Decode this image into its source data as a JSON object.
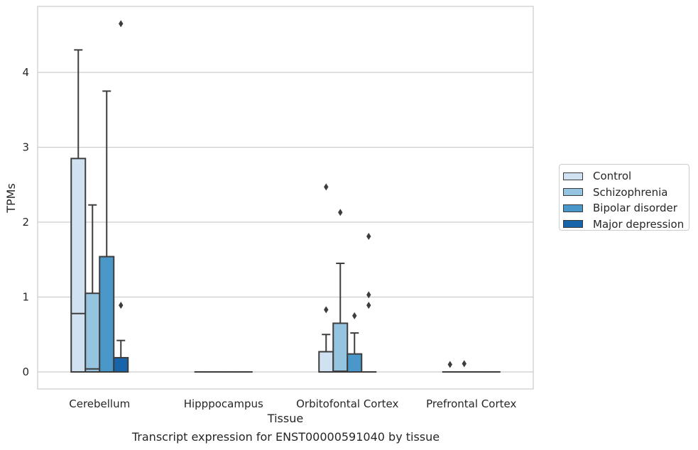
{
  "chart_data": {
    "type": "box",
    "xlabel": "Tissue",
    "ylabel": "TPMs",
    "caption": "Transcript expression for ENST00000591040 by tissue",
    "categories": [
      "Cerebellum",
      "Hipppocampus",
      "Orbitofontal Cortex",
      "Prefrontal Cortex"
    ],
    "yticks": [
      0,
      1,
      2,
      3,
      4
    ],
    "ylim": [
      -0.22,
      4.9
    ],
    "grid": true,
    "legend_position": "right",
    "series": [
      {
        "name": "Control",
        "color": "#d0e1f2",
        "boxes": [
          {
            "q1": 0,
            "median": 0.78,
            "q3": 2.85,
            "whisker_low": 0,
            "whisker_high": 4.3,
            "outliers": []
          },
          {
            "q1": 0,
            "median": 0,
            "q3": 0,
            "whisker_low": 0,
            "whisker_high": 0,
            "outliers": []
          },
          {
            "q1": 0,
            "median": 0,
            "q3": 0.27,
            "whisker_low": 0,
            "whisker_high": 0.5,
            "outliers": [
              0.83,
              2.47
            ]
          },
          {
            "q1": 0,
            "median": 0,
            "q3": 0,
            "whisker_low": 0,
            "whisker_high": 0,
            "outliers": [
              0.1
            ]
          }
        ]
      },
      {
        "name": "Schizophrenia",
        "color": "#94c4df",
        "boxes": [
          {
            "q1": 0,
            "median": 0.04,
            "q3": 1.05,
            "whisker_low": 0,
            "whisker_high": 2.23,
            "outliers": []
          },
          {
            "q1": 0,
            "median": 0,
            "q3": 0,
            "whisker_low": 0,
            "whisker_high": 0,
            "outliers": []
          },
          {
            "q1": 0,
            "median": 0.01,
            "q3": 0.65,
            "whisker_low": 0,
            "whisker_high": 1.45,
            "outliers": [
              2.13
            ]
          },
          {
            "q1": 0,
            "median": 0,
            "q3": 0,
            "whisker_low": 0,
            "whisker_high": 0,
            "outliers": [
              0.11
            ]
          }
        ]
      },
      {
        "name": "Bipolar disorder",
        "color": "#4a98c9",
        "boxes": [
          {
            "q1": 0,
            "median": 0,
            "q3": 1.54,
            "whisker_low": 0,
            "whisker_high": 3.75,
            "outliers": []
          },
          {
            "q1": 0,
            "median": 0,
            "q3": 0,
            "whisker_low": 0,
            "whisker_high": 0,
            "outliers": []
          },
          {
            "q1": 0,
            "median": 0,
            "q3": 0.24,
            "whisker_low": 0,
            "whisker_high": 0.52,
            "outliers": [
              0.75
            ]
          },
          {
            "q1": 0,
            "median": 0,
            "q3": 0,
            "whisker_low": 0,
            "whisker_high": 0,
            "outliers": []
          }
        ]
      },
      {
        "name": "Major depression",
        "color": "#1764ab",
        "boxes": [
          {
            "q1": 0,
            "median": 0,
            "q3": 0.19,
            "whisker_low": 0,
            "whisker_high": 0.42,
            "outliers": [
              0.89,
              4.65
            ]
          },
          {
            "q1": 0,
            "median": 0,
            "q3": 0,
            "whisker_low": 0,
            "whisker_high": 0,
            "outliers": []
          },
          {
            "q1": 0,
            "median": 0,
            "q3": 0,
            "whisker_low": 0,
            "whisker_high": 0,
            "outliers": [
              0.89,
              1.03,
              1.81
            ]
          },
          {
            "q1": 0,
            "median": 0,
            "q3": 0,
            "whisker_low": 0,
            "whisker_high": 0,
            "outliers": []
          }
        ]
      }
    ]
  }
}
